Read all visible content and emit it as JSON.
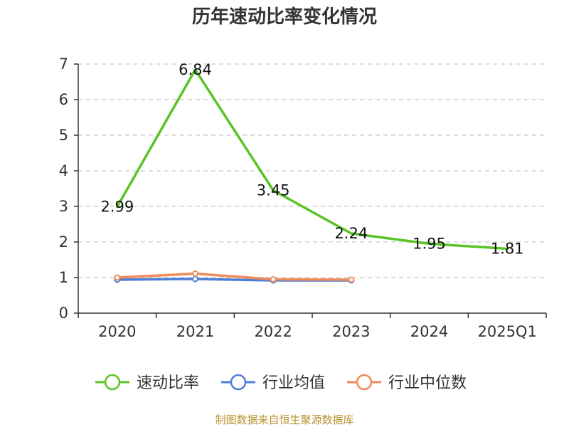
{
  "chart_data": {
    "type": "line",
    "title": "历年速动比率变化情况",
    "categories": [
      "2020",
      "2021",
      "2022",
      "2023",
      "2024",
      "2025Q1"
    ],
    "ylim": [
      0,
      7
    ],
    "yticks": [
      "0",
      "1",
      "2",
      "3",
      "4",
      "5",
      "6",
      "7"
    ],
    "grid": true,
    "legend_position": "bottom",
    "series": [
      {
        "name": "速动比率",
        "color": "#5bc425",
        "values": [
          2.99,
          6.84,
          3.45,
          2.24,
          1.95,
          1.81
        ],
        "labels": [
          "2.99",
          "6.84",
          "3.45",
          "2.24",
          "1.95",
          "1.81"
        ]
      },
      {
        "name": "行业均值",
        "color": "#4e7fd8",
        "values": [
          0.94,
          0.96,
          0.92,
          0.92,
          null,
          null
        ]
      },
      {
        "name": "行业中位数",
        "color": "#f08b5a",
        "values": [
          1.0,
          1.11,
          0.95,
          0.94,
          null,
          null
        ]
      }
    ]
  },
  "source_text": "制图数据来自恒生聚源数据库"
}
